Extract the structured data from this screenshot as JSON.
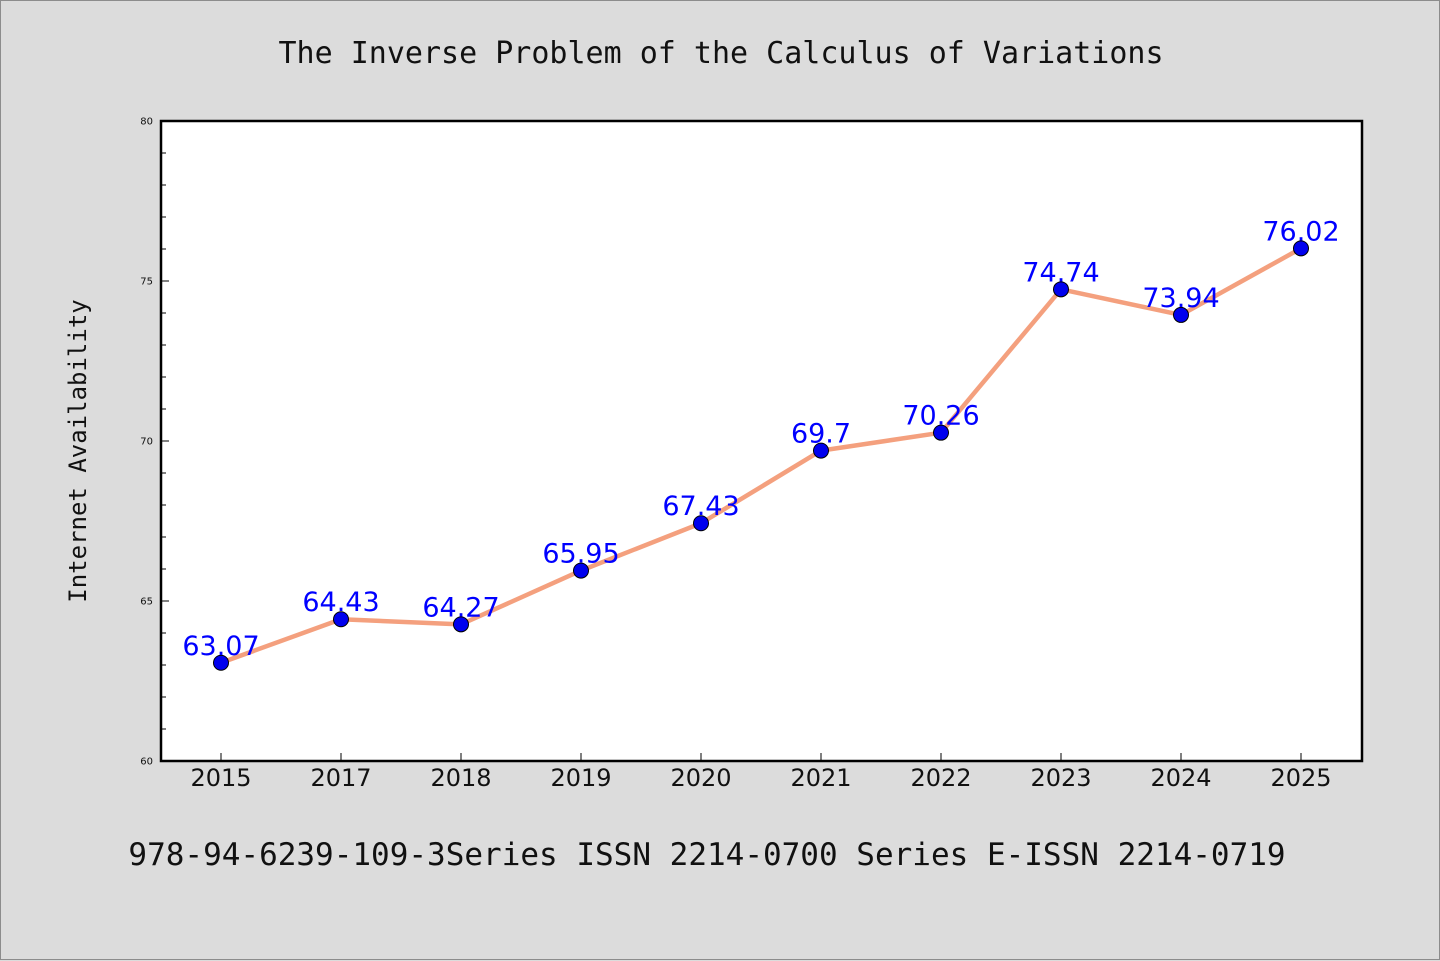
{
  "chart_data": {
    "type": "line",
    "title": "The Inverse Problem of the Calculus of Variations",
    "xlabel": "",
    "ylabel": "Internet Availability",
    "categories": [
      "2015",
      "2017",
      "2018",
      "2019",
      "2020",
      "2021",
      "2022",
      "2023",
      "2024",
      "2025"
    ],
    "series": [
      {
        "values": [
          63.07,
          64.43,
          64.27,
          65.95,
          67.43,
          69.7,
          70.26,
          74.74,
          73.94,
          76.02
        ],
        "labels": [
          "63.07",
          "64.43",
          "64.27",
          "65.95",
          "67.43",
          "69.7",
          "70.26",
          "74.74",
          "73.94",
          "76.02"
        ],
        "line_color": "#f4a07e",
        "marker_color": "#0000ee"
      }
    ],
    "ylim": [
      60,
      80
    ],
    "yticks": [
      "60",
      "65",
      "70",
      "75",
      "80"
    ],
    "grid": false,
    "legend": "none",
    "label_color": "#0000ff"
  },
  "caption": "978-94-6239-109-3Series ISSN 2214-0700 Series E-ISSN 2214-0719",
  "colors": {
    "background": "#dcdcdc",
    "plot_background": "#ffffff",
    "axis": "#000000"
  }
}
